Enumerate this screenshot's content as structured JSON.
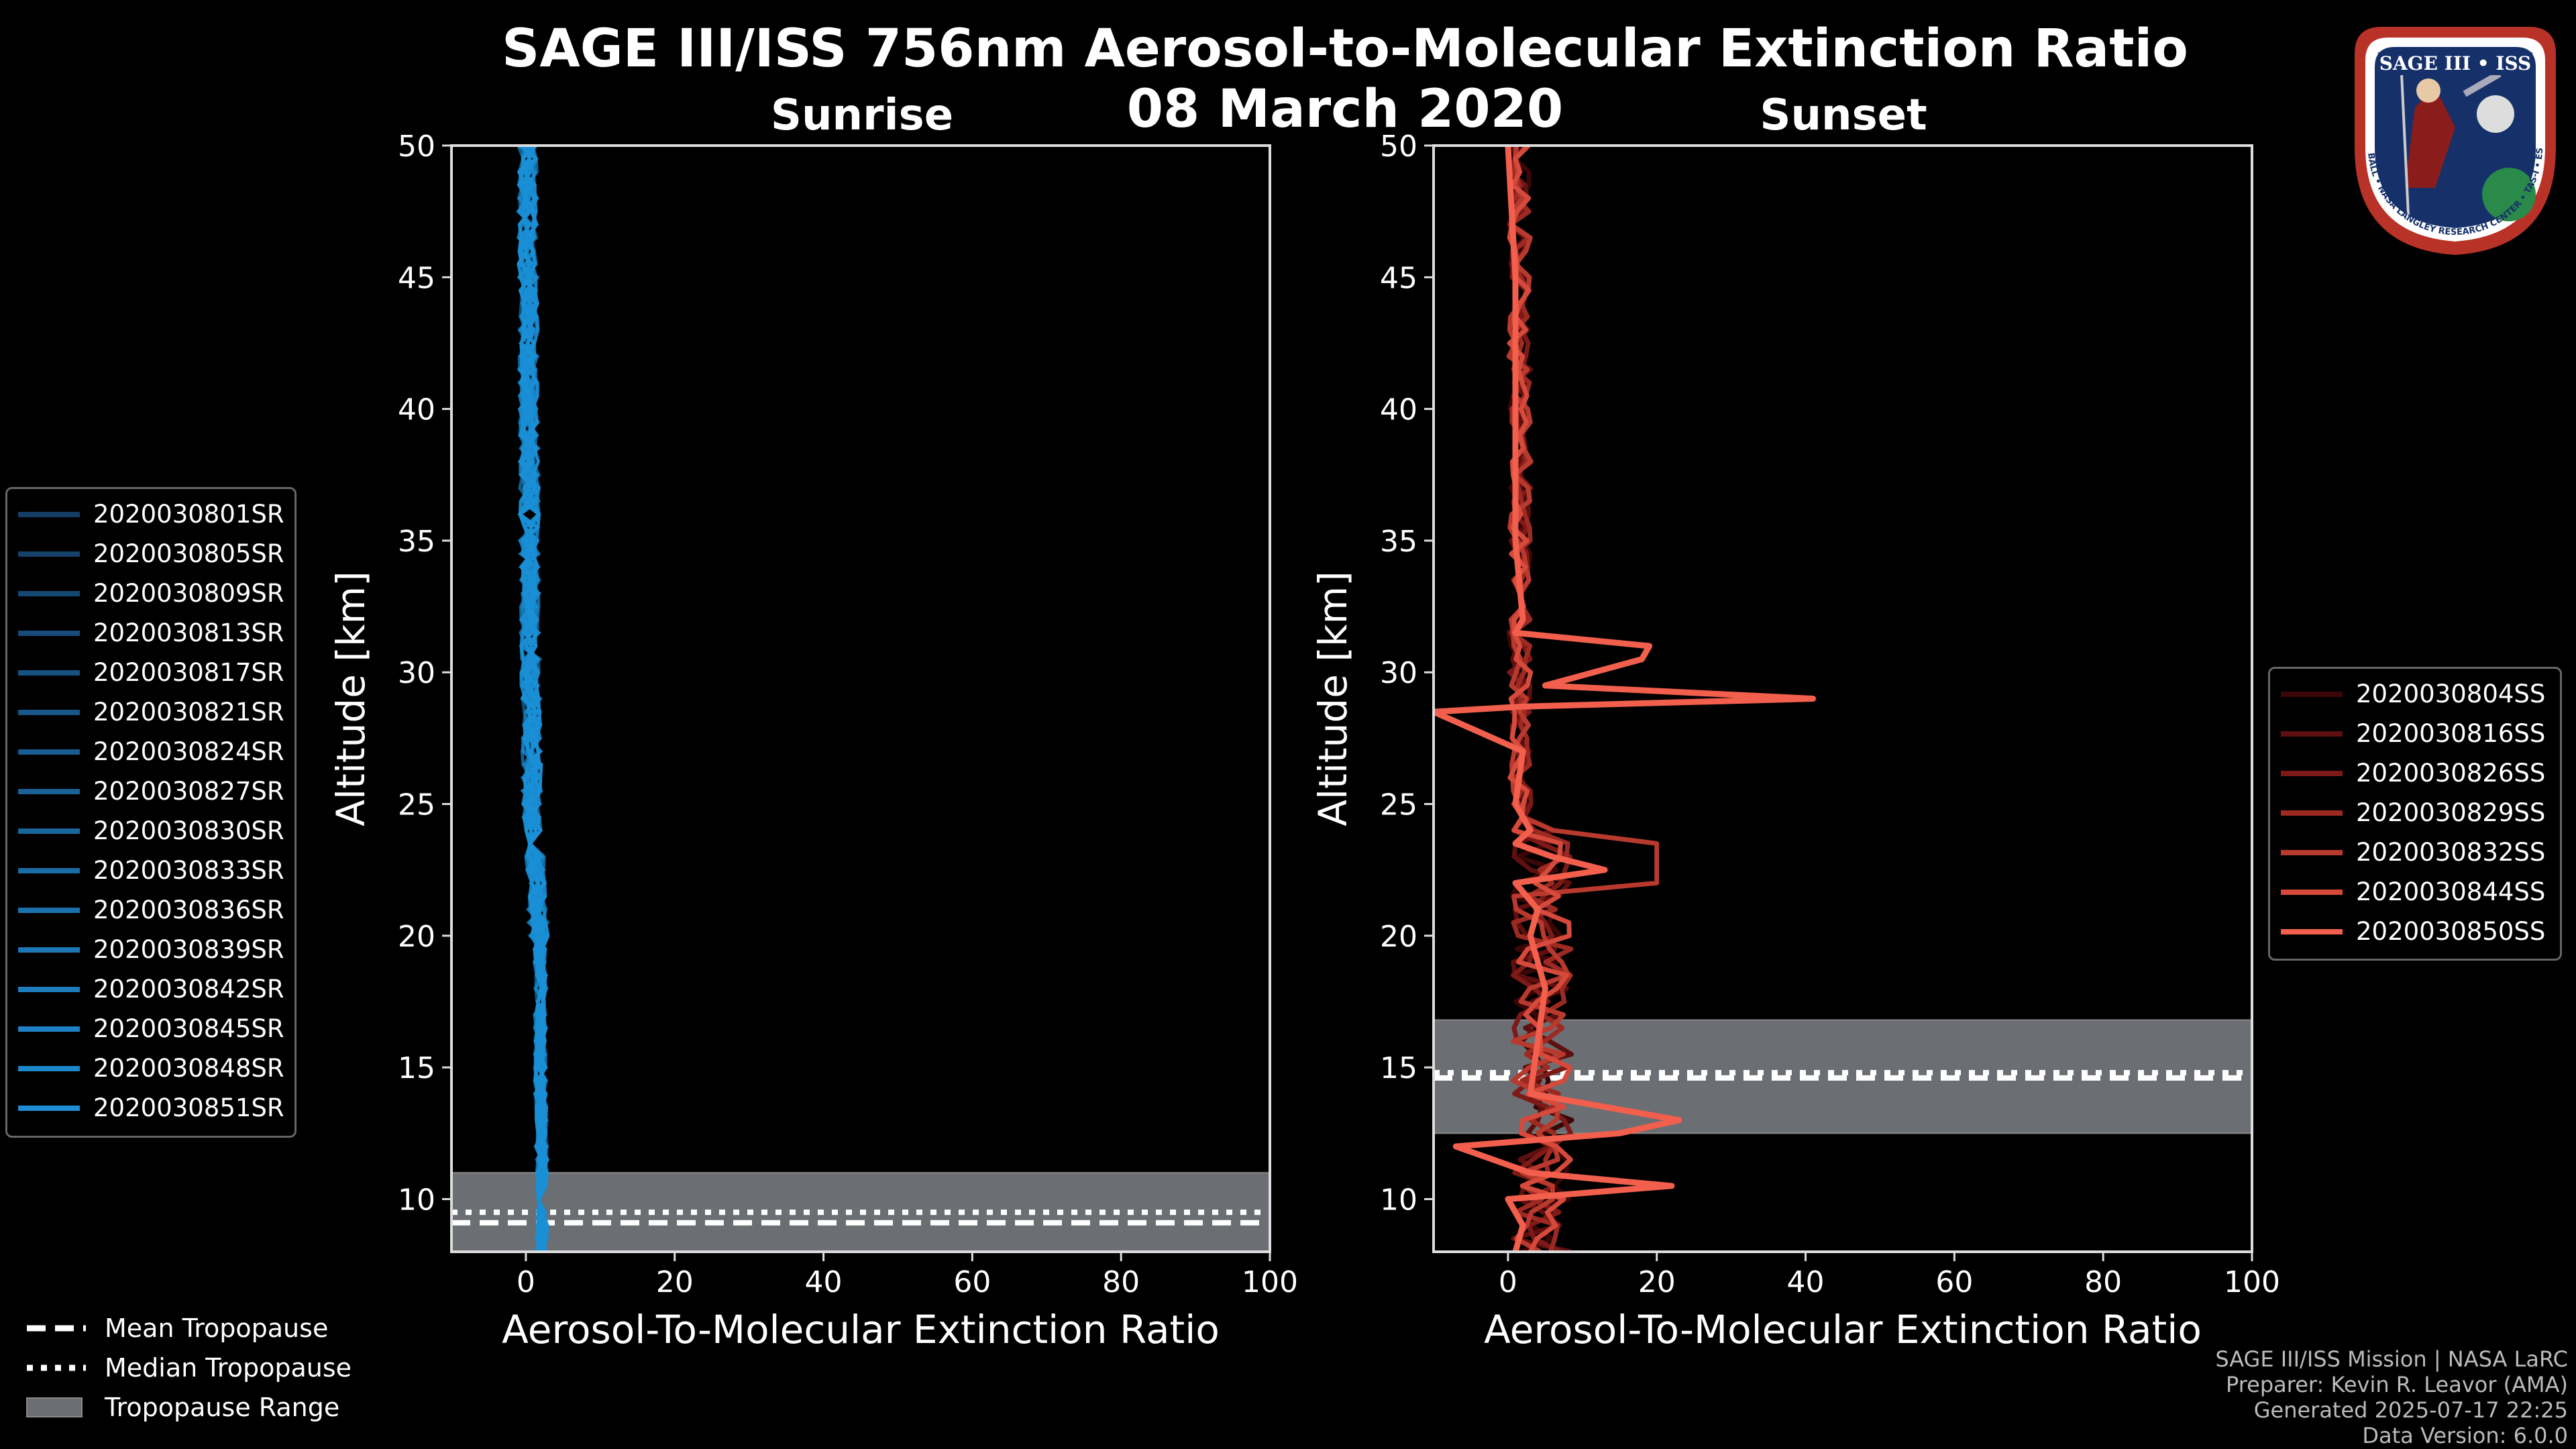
{
  "header": {
    "title_line1": "SAGE III/ISS 756nm Aerosol-to-Molecular Extinction Ratio",
    "title_line2": "08 March 2020"
  },
  "panels": {
    "sunrise_title": "Sunrise",
    "sunset_title": "Sunset"
  },
  "chart_data": [
    {
      "type": "line",
      "title": "Sunrise",
      "xlabel": "Aerosol-To-Molecular Extinction Ratio",
      "ylabel": "Altitude [km]",
      "xlim": [
        -10,
        100
      ],
      "ylim": [
        8,
        50
      ],
      "xticks": [
        0,
        20,
        40,
        60,
        80,
        100
      ],
      "yticks": [
        10,
        15,
        20,
        25,
        30,
        35,
        40,
        45,
        50
      ],
      "color": "#1a8fd6",
      "tropopause": {
        "mean": 9.1,
        "median": 9.5,
        "range": [
          8.0,
          11.0
        ]
      },
      "series": [
        {
          "name": "2020030801SR"
        },
        {
          "name": "2020030805SR"
        },
        {
          "name": "2020030809SR"
        },
        {
          "name": "2020030813SR"
        },
        {
          "name": "2020030817SR"
        },
        {
          "name": "2020030821SR"
        },
        {
          "name": "2020030824SR"
        },
        {
          "name": "2020030827SR"
        },
        {
          "name": "2020030830SR"
        },
        {
          "name": "2020030833SR"
        },
        {
          "name": "2020030836SR"
        },
        {
          "name": "2020030839SR"
        },
        {
          "name": "2020030842SR"
        },
        {
          "name": "2020030845SR"
        },
        {
          "name": "2020030848SR"
        },
        {
          "name": "2020030851SR"
        }
      ],
      "profile_center": {
        "altitude": [
          8,
          10,
          12,
          14,
          16,
          18,
          20,
          22,
          25,
          30,
          35,
          40,
          45,
          50
        ],
        "ratio": [
          2.0,
          2.3,
          2.1,
          2.0,
          1.9,
          2.0,
          1.8,
          1.3,
          0.9,
          0.6,
          0.5,
          0.4,
          0.3,
          0.2
        ]
      }
    },
    {
      "type": "line",
      "title": "Sunset",
      "xlabel": "Aerosol-To-Molecular Extinction Ratio",
      "ylabel": "Altitude [km]",
      "xlim": [
        -10,
        100
      ],
      "ylim": [
        8,
        50
      ],
      "xticks": [
        0,
        20,
        40,
        60,
        80,
        100
      ],
      "yticks": [
        10,
        15,
        20,
        25,
        30,
        35,
        40,
        45,
        50
      ],
      "tropopause": {
        "mean": 14.6,
        "median": 14.8,
        "range": [
          12.5,
          16.8
        ]
      },
      "series": [
        {
          "name": "2020030804SS",
          "color": "#3a0606"
        },
        {
          "name": "2020030816SS",
          "color": "#5e0f0f"
        },
        {
          "name": "2020030826SS",
          "color": "#7d1a17"
        },
        {
          "name": "2020030829SS",
          "color": "#9c2a22"
        },
        {
          "name": "2020030832SS",
          "color": "#b8392d"
        },
        {
          "name": "2020030844SS",
          "color": "#d64a3c"
        },
        {
          "name": "2020030850SS",
          "color": "#f25f4c"
        }
      ],
      "highlight_profile": {
        "altitude": [
          8,
          9,
          10,
          10.5,
          11,
          12,
          12.5,
          13,
          14,
          16,
          18,
          20,
          21,
          22,
          22.5,
          23,
          23.5,
          24,
          25,
          27,
          28.5,
          28.7,
          29,
          29.5,
          30.5,
          31,
          31.5,
          32,
          35,
          40,
          45,
          50
        ],
        "ratio": [
          1,
          2,
          0,
          22,
          3,
          -7,
          15,
          23,
          3,
          4,
          5,
          3,
          4,
          1,
          13,
          6,
          1,
          3,
          1,
          2,
          -10,
          2,
          41,
          5,
          18,
          19,
          1,
          2,
          1,
          1,
          1,
          0
        ]
      }
    }
  ],
  "legend_tropopause": {
    "mean": "Mean Tropopause",
    "median": "Median Tropopause",
    "range": "Tropopause Range"
  },
  "footer": {
    "line1": "SAGE III/ISS Mission | NASA LaRC",
    "line2": "Preparer: Kevin R. Leavor (AMA)",
    "line3": "Generated 2025-07-17 22:25",
    "line4": "Data Version: 6.0.0"
  },
  "logo": {
    "text": "SAGE III • ISS",
    "ring_text": "BALL • NASA LANGLEY RESEARCH CENTER • TAS-I • ESA"
  }
}
